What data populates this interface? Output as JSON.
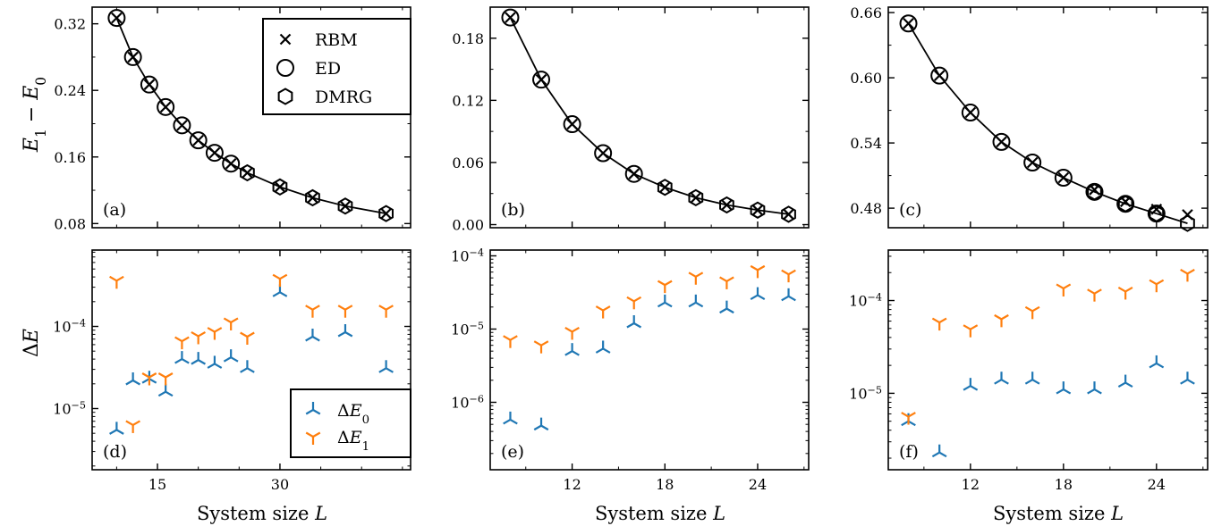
{
  "colors": {
    "dE0": "#1f77b4",
    "dE1": "#ff7f0e",
    "line": "#000000"
  },
  "figure": {
    "xlabel": "System size L",
    "ylabel_top": "E1 − E0",
    "ylabel_bottom": "ΔE"
  },
  "legend_top": {
    "entries": [
      {
        "label": "RBM",
        "marker": "x-icon"
      },
      {
        "label": "ED",
        "marker": "circle-icon"
      },
      {
        "label": "DMRG",
        "marker": "hexagon-icon"
      }
    ]
  },
  "legend_bottom": {
    "entries": [
      {
        "label": "ΔE0",
        "marker": "tri-up-icon",
        "color": "#1f77b4"
      },
      {
        "label": "ΔE1",
        "marker": "tri-down-icon",
        "color": "#ff7f0e"
      }
    ]
  },
  "chart_data": [
    {
      "id": "a",
      "panel_label": "(a)",
      "type": "line",
      "xlim": [
        7,
        46
      ],
      "ylim": [
        0.075,
        0.34
      ],
      "xticks": [
        15,
        30
      ],
      "yticks": [
        0.08,
        0.16,
        0.24,
        0.32
      ],
      "ytick_labels": [
        "0.08",
        "0.16",
        "0.24",
        "0.32"
      ],
      "series": [
        {
          "name": "RBM",
          "x": [
            10,
            12,
            14,
            16,
            18,
            20,
            22,
            24,
            26,
            30,
            34,
            38,
            43
          ],
          "y": [
            0.327,
            0.28,
            0.247,
            0.22,
            0.198,
            0.18,
            0.165,
            0.152,
            0.141,
            0.124,
            0.111,
            0.101,
            0.092
          ]
        },
        {
          "name": "ED",
          "x": [
            10,
            12,
            14,
            16,
            18,
            20,
            22,
            24
          ],
          "y": [
            0.327,
            0.28,
            0.247,
            0.22,
            0.198,
            0.18,
            0.165,
            0.152
          ]
        },
        {
          "name": "DMRG",
          "x": [
            26,
            30,
            34,
            38,
            43
          ],
          "y": [
            0.141,
            0.124,
            0.111,
            0.101,
            0.092
          ]
        }
      ]
    },
    {
      "id": "b",
      "panel_label": "(b)",
      "type": "line",
      "xlim": [
        6.7,
        27.3
      ],
      "ylim": [
        -0.003,
        0.21
      ],
      "xticks": [
        12,
        18,
        24
      ],
      "yticks": [
        0.0,
        0.06,
        0.12,
        0.18
      ],
      "ytick_labels": [
        "0.00",
        "0.06",
        "0.12",
        "0.18"
      ],
      "series": [
        {
          "name": "RBM",
          "x": [
            8,
            10,
            12,
            14,
            16,
            18,
            20,
            22,
            24,
            26
          ],
          "y": [
            0.2,
            0.14,
            0.097,
            0.069,
            0.049,
            0.036,
            0.026,
            0.019,
            0.014,
            0.01
          ]
        },
        {
          "name": "ED",
          "x": [
            8,
            10,
            12,
            14,
            16
          ],
          "y": [
            0.2,
            0.14,
            0.097,
            0.069,
            0.049
          ]
        },
        {
          "name": "DMRG",
          "x": [
            18,
            20,
            22,
            24,
            26
          ],
          "y": [
            0.036,
            0.026,
            0.019,
            0.014,
            0.01
          ]
        }
      ]
    },
    {
      "id": "c",
      "panel_label": "(c)",
      "type": "line",
      "xlim": [
        6.7,
        27.3
      ],
      "ylim": [
        0.462,
        0.665
      ],
      "xticks": [
        12,
        18,
        24
      ],
      "yticks": [
        0.48,
        0.54,
        0.6,
        0.66
      ],
      "ytick_labels": [
        "0.48",
        "0.54",
        "0.60",
        "0.66"
      ],
      "series": [
        {
          "name": "RBM",
          "x": [
            8,
            10,
            12,
            14,
            16,
            18,
            20,
            22,
            24,
            26
          ],
          "y": [
            0.65,
            0.602,
            0.568,
            0.541,
            0.522,
            0.508,
            0.497,
            0.486,
            0.479,
            0.474
          ]
        },
        {
          "name": "ED",
          "x": [
            8,
            10,
            12,
            14,
            16,
            18,
            20,
            22,
            24
          ],
          "y": [
            0.65,
            0.602,
            0.568,
            0.541,
            0.522,
            0.508,
            0.495,
            0.484,
            0.475
          ]
        },
        {
          "name": "DMRG",
          "x": [
            20,
            22,
            24,
            26
          ],
          "y": [
            0.495,
            0.484,
            0.475,
            0.466
          ]
        }
      ]
    },
    {
      "id": "d",
      "panel_label": "(d)",
      "type": "scatter",
      "yscale": "log",
      "xlim": [
        7,
        46
      ],
      "ylim": [
        1.8e-06,
        0.00085
      ],
      "xticks": [
        15,
        30
      ],
      "yticks": [
        1e-05,
        0.0001
      ],
      "ytick_labels": [
        "10−5",
        "10−4"
      ],
      "series": [
        {
          "name": "ΔE0",
          "x": [
            10,
            12,
            14,
            16,
            18,
            20,
            22,
            24,
            26,
            30,
            34,
            38,
            43
          ],
          "y": [
            5.5e-06,
            2.2e-05,
            2.3e-05,
            1.6e-05,
            4e-05,
            3.9e-05,
            3.5e-05,
            4.2e-05,
            3.1e-05,
            0.00026,
            7.5e-05,
            8.5e-05,
            3.1e-05
          ]
        },
        {
          "name": "ΔE1",
          "x": [
            10,
            12,
            14,
            16,
            18,
            20,
            22,
            24,
            26,
            30,
            34,
            38,
            43
          ],
          "y": [
            0.00036,
            6.3e-06,
            2.4e-05,
            2.4e-05,
            6.6e-05,
            7.6e-05,
            8.6e-05,
            0.000112,
            7.5e-05,
            0.00038,
            0.00016,
            0.00016,
            0.00016
          ]
        }
      ]
    },
    {
      "id": "e",
      "panel_label": "(e)",
      "type": "scatter",
      "yscale": "log",
      "xlim": [
        6.7,
        27.3
      ],
      "ylim": [
        1.2e-07,
        0.00012
      ],
      "xticks": [
        12,
        18,
        24
      ],
      "yticks": [
        1e-06,
        1e-05,
        0.0001
      ],
      "ytick_labels": [
        "10−6",
        "10−5",
        "10−4"
      ],
      "series": [
        {
          "name": "ΔE0",
          "x": [
            8,
            10,
            12,
            14,
            16,
            18,
            20,
            22,
            24,
            26
          ],
          "y": [
            5.8e-07,
            4.8e-07,
            5e-06,
            5.4e-06,
            1.2e-05,
            2.3e-05,
            2.3e-05,
            1.9e-05,
            2.9e-05,
            2.8e-05
          ]
        },
        {
          "name": "ΔE1",
          "x": [
            8,
            10,
            12,
            14,
            16,
            18,
            20,
            22,
            24,
            26
          ],
          "y": [
            7.1e-06,
            6e-06,
            9.2e-06,
            1.8e-05,
            2.4e-05,
            4e-05,
            5.2e-05,
            4.5e-05,
            6.4e-05,
            5.6e-05
          ]
        }
      ]
    },
    {
      "id": "f",
      "panel_label": "(f)",
      "type": "scatter",
      "yscale": "log",
      "xlim": [
        6.7,
        27.3
      ],
      "ylim": [
        1.5e-06,
        0.00035
      ],
      "xticks": [
        12,
        18,
        24
      ],
      "yticks": [
        1e-05,
        0.0001
      ],
      "ytick_labels": [
        "10−5",
        "10−4"
      ],
      "series": [
        {
          "name": "ΔE0",
          "x": [
            8,
            10,
            12,
            14,
            16,
            18,
            20,
            22,
            24,
            26
          ],
          "y": [
            5e-06,
            2.3e-06,
            1.2e-05,
            1.4e-05,
            1.4e-05,
            1.1e-05,
            1.1e-05,
            1.3e-05,
            2.1e-05,
            1.4e-05
          ]
        },
        {
          "name": "ΔE1",
          "x": [
            8,
            10,
            12,
            14,
            16,
            18,
            20,
            22,
            24,
            26
          ],
          "y": [
            5.6e-06,
            5.8e-05,
            4.9e-05,
            6.3e-05,
            7.7e-05,
            0.000135,
            0.000119,
            0.000125,
            0.00015,
            0.000195
          ]
        }
      ]
    }
  ]
}
